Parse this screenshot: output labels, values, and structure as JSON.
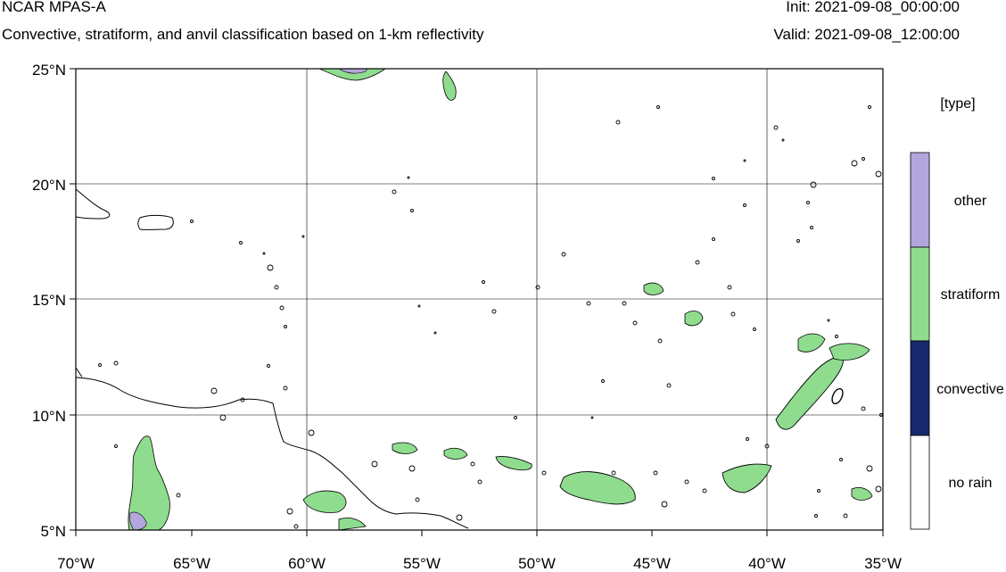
{
  "header": {
    "title": "NCAR MPAS-A",
    "subtitle": "Convective, stratiform, and anvil classification based on 1-km reflectivity",
    "init": "Init: 2021-09-08_00:00:00",
    "valid": "Valid: 2021-09-08_12:00:00"
  },
  "map": {
    "lat_labels": [
      "25°N",
      "20°N",
      "15°N",
      "10°N",
      "5°N"
    ],
    "lon_labels": [
      "70°W",
      "65°W",
      "60°W",
      "55°W",
      "50°W",
      "45°W",
      "40°W",
      "35°W"
    ],
    "lat_range": [
      5,
      25
    ],
    "lon_range": [
      -70,
      -35
    ]
  },
  "legend": {
    "title": "[type]",
    "items": [
      {
        "label": "other",
        "color": "#b3a6dc"
      },
      {
        "label": "stratiform",
        "color": "#8fdc8f"
      },
      {
        "label": "convective",
        "color": "#18286e"
      },
      {
        "label": "no rain",
        "color": "#ffffff"
      }
    ]
  }
}
